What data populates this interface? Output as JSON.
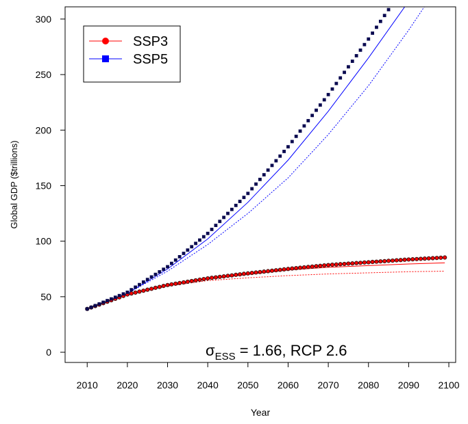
{
  "chart_data": {
    "type": "line",
    "xlabel": "Year",
    "ylabel": "Global GDP ($trillions)",
    "annotation": {
      "symbol": "σ",
      "subscript": "ESS",
      "text": " = 1.66, RCP 2.6"
    },
    "xlim": [
      2004.5,
      2101.7
    ],
    "xticks": [
      2010,
      2020,
      2030,
      2040,
      2050,
      2060,
      2070,
      2080,
      2090,
      2100
    ],
    "ylim": [
      -9.2,
      311
    ],
    "yticks": [
      0,
      50,
      100,
      150,
      200,
      250,
      300
    ],
    "legend": "upper left",
    "series": [
      {
        "name": "SSP3",
        "color": "#ff0000",
        "edgecolor": "#3a1010",
        "marker": "circle",
        "x": [
          2010,
          2011,
          2012,
          2013,
          2014,
          2015,
          2016,
          2017,
          2018,
          2019,
          2020,
          2021,
          2022,
          2023,
          2024,
          2025,
          2026,
          2027,
          2028,
          2029,
          2030,
          2031,
          2032,
          2033,
          2034,
          2035,
          2036,
          2037,
          2038,
          2039,
          2040,
          2041,
          2042,
          2043,
          2044,
          2045,
          2046,
          2047,
          2048,
          2049,
          2050,
          2051,
          2052,
          2053,
          2054,
          2055,
          2056,
          2057,
          2058,
          2059,
          2060,
          2061,
          2062,
          2063,
          2064,
          2065,
          2066,
          2067,
          2068,
          2069,
          2070,
          2071,
          2072,
          2073,
          2074,
          2075,
          2076,
          2077,
          2078,
          2079,
          2080,
          2081,
          2082,
          2083,
          2084,
          2085,
          2086,
          2087,
          2088,
          2089,
          2090,
          2091,
          2092,
          2093,
          2094,
          2095,
          2096,
          2097,
          2098,
          2099
        ],
        "values": [
          39,
          40.3,
          41.6,
          42.9,
          44.2,
          45.5,
          46.8,
          48.1,
          49.4,
          50.7,
          52,
          52.9,
          53.7,
          54.6,
          55.4,
          56.3,
          57.1,
          58,
          58.8,
          59.7,
          60.5,
          61.1,
          61.7,
          62.3,
          62.9,
          63.5,
          64.1,
          64.7,
          65.3,
          65.9,
          66.5,
          67,
          67.4,
          67.9,
          68.3,
          68.8,
          69.2,
          69.7,
          70.1,
          70.6,
          71,
          71.4,
          71.8,
          72.2,
          72.6,
          73,
          73.4,
          73.8,
          74.2,
          74.6,
          75,
          75.4,
          75.7,
          76.1,
          76.4,
          76.8,
          77.1,
          77.5,
          77.8,
          78.2,
          78.5,
          78.8,
          79,
          79.3,
          79.5,
          79.8,
          80,
          80.3,
          80.5,
          80.8,
          81,
          81.3,
          81.5,
          81.8,
          82,
          82.3,
          82.5,
          82.8,
          83,
          83.3,
          83.5,
          83.7,
          83.9,
          84.1,
          84.3,
          84.5,
          84.7,
          84.9,
          85.1,
          85.3
        ]
      },
      {
        "name": "SSP5",
        "color": "#0000ff",
        "edgecolor": "#0a0a50",
        "marker": "square",
        "x": [
          2010,
          2011,
          2012,
          2013,
          2014,
          2015,
          2016,
          2017,
          2018,
          2019,
          2020,
          2021,
          2022,
          2023,
          2024,
          2025,
          2026,
          2027,
          2028,
          2029,
          2030,
          2031,
          2032,
          2033,
          2034,
          2035,
          2036,
          2037,
          2038,
          2039,
          2040,
          2041,
          2042,
          2043,
          2044,
          2045,
          2046,
          2047,
          2048,
          2049,
          2050,
          2051,
          2052,
          2053,
          2054,
          2055,
          2056,
          2057,
          2058,
          2059,
          2060,
          2061,
          2062,
          2063,
          2064,
          2065,
          2066,
          2067,
          2068,
          2069,
          2070,
          2071,
          2072,
          2073,
          2074,
          2075,
          2076,
          2077,
          2078,
          2079,
          2080,
          2081,
          2082,
          2083,
          2084,
          2085,
          2086
        ],
        "values": [
          39,
          40.5,
          42,
          43.5,
          45,
          46.5,
          48,
          49.5,
          51,
          52.5,
          54,
          56.3,
          58.6,
          60.9,
          63.2,
          65.5,
          67.8,
          70.1,
          72.4,
          74.7,
          77,
          80,
          83,
          86,
          89,
          92,
          95,
          98,
          101,
          104,
          107,
          110.6,
          114.2,
          117.8,
          121.4,
          125,
          128.6,
          132.2,
          135.8,
          139.4,
          143,
          147.2,
          151.4,
          155.6,
          159.8,
          164,
          168.2,
          172.4,
          176.6,
          180.8,
          185,
          189.7,
          194.4,
          199.1,
          203.8,
          208.5,
          213.2,
          217.9,
          222.6,
          227.3,
          232,
          237,
          242,
          247,
          252,
          257,
          262,
          267,
          272,
          277,
          282,
          287.3,
          292.6,
          297.9,
          303.2,
          308.5,
          313.8
        ]
      },
      {
        "color": "#ff0000",
        "style": "solid",
        "x": [
          2010,
          2020,
          2030,
          2040,
          2050,
          2060,
          2070,
          2080,
          2090,
          2099
        ],
        "values": [
          39,
          52,
          60,
          66,
          70,
          74,
          76.5,
          78,
          79.5,
          80.5
        ]
      },
      {
        "color": "#ff0000",
        "style": "dotted",
        "x": [
          2010,
          2020,
          2030,
          2040,
          2050,
          2060,
          2070,
          2080,
          2090,
          2099
        ],
        "values": [
          39,
          52,
          59.5,
          64.5,
          67,
          69,
          70.5,
          71.5,
          72.5,
          73
        ]
      },
      {
        "color": "#0000ff",
        "style": "solid",
        "x": [
          2010,
          2020,
          2030,
          2040,
          2050,
          2060,
          2070,
          2080,
          2090
        ],
        "values": [
          39,
          53,
          75,
          102,
          135,
          173,
          217,
          265,
          316
        ]
      },
      {
        "color": "#0000ff",
        "style": "dotted",
        "x": [
          2010,
          2020,
          2030,
          2040,
          2050,
          2060,
          2070,
          2080,
          2090,
          2095
        ],
        "values": [
          39,
          53,
          73,
          97,
          125,
          157,
          196,
          240,
          290,
          317
        ]
      }
    ]
  }
}
